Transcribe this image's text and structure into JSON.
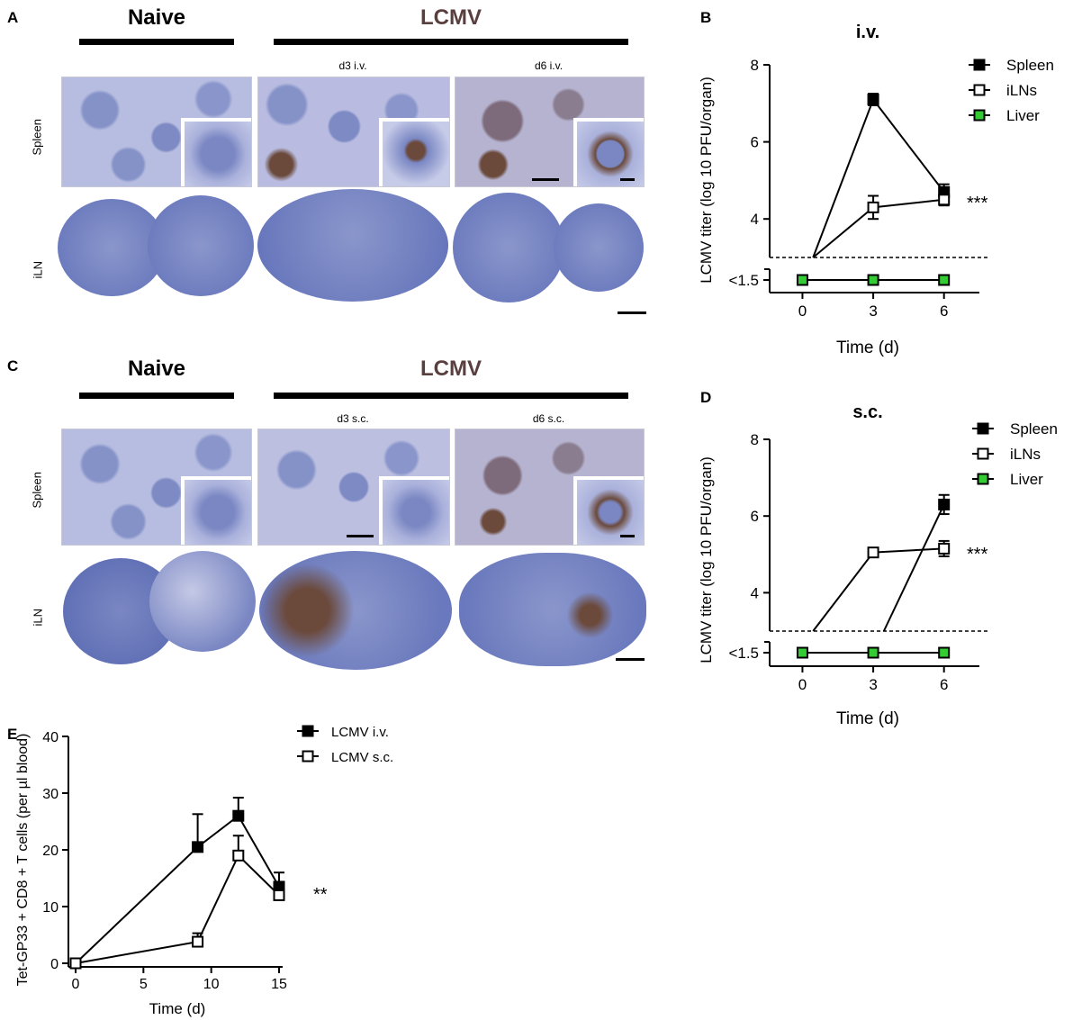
{
  "panels": {
    "A": {
      "letter": "A",
      "naive_label": "Naive",
      "lcmv_label": "LCMV",
      "col_labels": [
        "d3 i.v.",
        "d6 i.v."
      ],
      "row_labels": [
        "Spleen",
        "iLN"
      ]
    },
    "C": {
      "letter": "C",
      "naive_label": "Naive",
      "lcmv_label": "LCMV",
      "col_labels": [
        "d3 s.c.",
        "d6 s.c."
      ],
      "row_labels": [
        "Spleen",
        "iLN"
      ]
    },
    "B": {
      "letter": "B"
    },
    "D": {
      "letter": "D"
    },
    "E": {
      "letter": "E"
    }
  },
  "chart_data": [
    {
      "id": "B",
      "type": "line",
      "title": "i.v.",
      "xlabel": "Time (d)",
      "ylabel": "LCMV titer (log 10 PFU/organ)",
      "x": [
        0,
        3,
        6
      ],
      "ytick_labels": [
        "8",
        "6",
        "4",
        "<1.5"
      ],
      "xlim": [
        -1.2,
        7.5
      ],
      "ylim": [
        1.5,
        8
      ],
      "detection_limit": 3,
      "significance": "***",
      "legend_position": "top-right",
      "series": [
        {
          "name": "Spleen",
          "marker": "filled-square",
          "color": "#000000",
          "values": [
            1.5,
            7.1,
            4.7
          ],
          "errors": [
            0,
            0.15,
            0.2
          ]
        },
        {
          "name": "iLNs",
          "marker": "open-square",
          "color": "#000000",
          "values": [
            1.5,
            4.3,
            4.5
          ],
          "errors": [
            0,
            0.3,
            0.15
          ]
        },
        {
          "name": "Liver",
          "marker": "green-square",
          "color": "#33cc33",
          "values": [
            1.5,
            1.5,
            1.5
          ],
          "errors": [
            0,
            0,
            0
          ]
        }
      ]
    },
    {
      "id": "D",
      "type": "line",
      "title": "s.c.",
      "xlabel": "Time (d)",
      "ylabel": "LCMV titer (log 10 PFU/organ)",
      "x": [
        0,
        3,
        6
      ],
      "ytick_labels": [
        "8",
        "6",
        "4",
        "<1.5"
      ],
      "xlim": [
        -1.2,
        7.5
      ],
      "ylim": [
        1.5,
        8
      ],
      "detection_limit": 3,
      "significance": "***",
      "legend_position": "top-right",
      "series": [
        {
          "name": "Spleen",
          "marker": "filled-square",
          "color": "#000000",
          "values": [
            1.5,
            1.5,
            6.3
          ],
          "errors": [
            0,
            0,
            0.25
          ]
        },
        {
          "name": "iLNs",
          "marker": "open-square",
          "color": "#000000",
          "values": [
            1.5,
            5.05,
            5.15
          ],
          "errors": [
            0,
            0.1,
            0.2
          ]
        },
        {
          "name": "Liver",
          "marker": "green-square",
          "color": "#33cc33",
          "values": [
            1.5,
            1.5,
            1.5
          ],
          "errors": [
            0,
            0,
            0
          ]
        }
      ]
    },
    {
      "id": "E",
      "type": "line",
      "title": "",
      "xlabel": "Time (d)",
      "ylabel": "Tet-GP33 + CD8 + T cells (per µl blood)",
      "xticks": [
        0,
        5,
        10,
        15
      ],
      "yticks": [
        0,
        10,
        20,
        30,
        40
      ],
      "xlim": [
        0,
        15
      ],
      "ylim": [
        0,
        40
      ],
      "significance": "**",
      "legend_position": "top-right",
      "series": [
        {
          "name": "LCMV i.v.",
          "marker": "filled-square",
          "x": [
            0,
            9,
            12,
            15
          ],
          "values": [
            0,
            20.5,
            26,
            13.5
          ],
          "errors": [
            0,
            5.8,
            3.2,
            2.5
          ]
        },
        {
          "name": "LCMV s.c.",
          "marker": "open-square",
          "x": [
            0,
            9,
            12,
            15
          ],
          "values": [
            0,
            3.8,
            19,
            12
          ],
          "errors": [
            0,
            1.5,
            3.5,
            1
          ]
        }
      ]
    }
  ]
}
